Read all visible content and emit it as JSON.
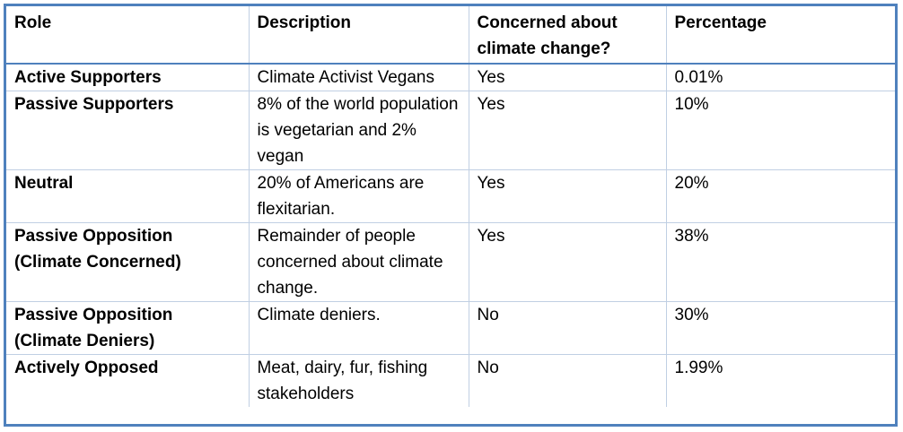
{
  "table": {
    "headers": {
      "role": "Role",
      "description": "Description",
      "concerned": "Concerned about climate change?",
      "percentage": "Percentage"
    },
    "rows": [
      {
        "role": "Active Supporters",
        "description": "Climate Activist Vegans",
        "concerned": "Yes",
        "percentage": "0.01%"
      },
      {
        "role": "Passive Supporters",
        "description": "8% of the world population is vegetarian and 2% vegan",
        "concerned": "Yes",
        "percentage": "10%"
      },
      {
        "role": "Neutral",
        "description": "20% of Americans are flexitarian.",
        "concerned": "Yes",
        "percentage": "20%"
      },
      {
        "role": "Passive Opposition (Climate Concerned)",
        "description": "Remainder of people concerned about climate change.",
        "concerned": "Yes",
        "percentage": "38%"
      },
      {
        "role": "Passive Opposition (Climate Deniers)",
        "description": "Climate deniers.",
        "concerned": "No",
        "percentage": "30%"
      },
      {
        "role": "Actively Opposed",
        "description": "Meat, dairy, fur, fishing stakeholders",
        "concerned": "No",
        "percentage": "1.99%"
      }
    ]
  },
  "colors": {
    "border": "#4f81bd",
    "grid": "#c0cfe3"
  }
}
